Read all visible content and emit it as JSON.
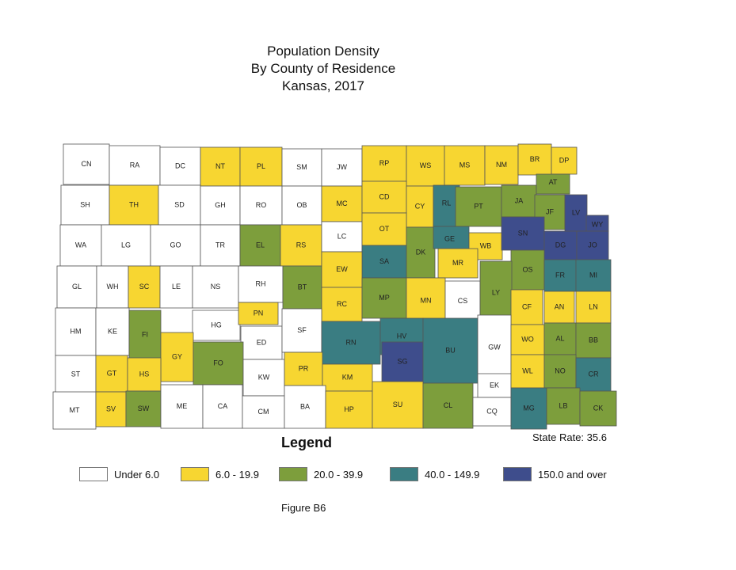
{
  "title": {
    "line1": "Population Density",
    "line2": "By County of Residence",
    "line3": "Kansas, 2017"
  },
  "state_rate": "State Rate: 35.6",
  "legend": {
    "title": "Legend",
    "items": [
      {
        "label": "Under 6.0",
        "color": "#ffffff"
      },
      {
        "label": "6.0 - 19.9",
        "color": "#f7d631"
      },
      {
        "label": "20.0 - 39.9",
        "color": "#7d9e3c"
      },
      {
        "label": "40.0 - 149.9",
        "color": "#3a7d82"
      },
      {
        "label": "150.0 and over",
        "color": "#3e4d8c"
      }
    ]
  },
  "figure_caption": "Figure B6",
  "counties": [
    {
      "abbr": "CN",
      "cls": 0
    },
    {
      "abbr": "RA",
      "cls": 0
    },
    {
      "abbr": "DC",
      "cls": 0
    },
    {
      "abbr": "NT",
      "cls": 1
    },
    {
      "abbr": "PL",
      "cls": 1
    },
    {
      "abbr": "SM",
      "cls": 0
    },
    {
      "abbr": "JW",
      "cls": 0
    },
    {
      "abbr": "RP",
      "cls": 1
    },
    {
      "abbr": "WS",
      "cls": 1
    },
    {
      "abbr": "MS",
      "cls": 1
    },
    {
      "abbr": "NM",
      "cls": 1
    },
    {
      "abbr": "BR",
      "cls": 1
    },
    {
      "abbr": "DP",
      "cls": 1
    },
    {
      "abbr": "SH",
      "cls": 0
    },
    {
      "abbr": "TH",
      "cls": 1
    },
    {
      "abbr": "SD",
      "cls": 0
    },
    {
      "abbr": "GH",
      "cls": 0
    },
    {
      "abbr": "RO",
      "cls": 0
    },
    {
      "abbr": "OB",
      "cls": 0
    },
    {
      "abbr": "MC",
      "cls": 1
    },
    {
      "abbr": "CD",
      "cls": 1
    },
    {
      "abbr": "CY",
      "cls": 1
    },
    {
      "abbr": "RL",
      "cls": 3
    },
    {
      "abbr": "PT",
      "cls": 2
    },
    {
      "abbr": "JA",
      "cls": 2
    },
    {
      "abbr": "AT",
      "cls": 2
    },
    {
      "abbr": "JF",
      "cls": 2
    },
    {
      "abbr": "LV",
      "cls": 4
    },
    {
      "abbr": "WY",
      "cls": 4
    },
    {
      "abbr": "WA",
      "cls": 0
    },
    {
      "abbr": "LG",
      "cls": 0
    },
    {
      "abbr": "GO",
      "cls": 0
    },
    {
      "abbr": "TR",
      "cls": 0
    },
    {
      "abbr": "EL",
      "cls": 2
    },
    {
      "abbr": "RS",
      "cls": 1
    },
    {
      "abbr": "LC",
      "cls": 0
    },
    {
      "abbr": "OT",
      "cls": 1
    },
    {
      "abbr": "SA",
      "cls": 3
    },
    {
      "abbr": "DK",
      "cls": 2
    },
    {
      "abbr": "GE",
      "cls": 3
    },
    {
      "abbr": "WB",
      "cls": 1
    },
    {
      "abbr": "SN",
      "cls": 4
    },
    {
      "abbr": "DG",
      "cls": 4
    },
    {
      "abbr": "JO",
      "cls": 4
    },
    {
      "abbr": "MR",
      "cls": 1
    },
    {
      "abbr": "OS",
      "cls": 2
    },
    {
      "abbr": "FR",
      "cls": 3
    },
    {
      "abbr": "MI",
      "cls": 3
    },
    {
      "abbr": "GL",
      "cls": 0
    },
    {
      "abbr": "WH",
      "cls": 0
    },
    {
      "abbr": "SC",
      "cls": 1
    },
    {
      "abbr": "LE",
      "cls": 0
    },
    {
      "abbr": "NS",
      "cls": 0
    },
    {
      "abbr": "RH",
      "cls": 0
    },
    {
      "abbr": "BT",
      "cls": 2
    },
    {
      "abbr": "EW",
      "cls": 1
    },
    {
      "abbr": "RC",
      "cls": 1
    },
    {
      "abbr": "MP",
      "cls": 2
    },
    {
      "abbr": "MN",
      "cls": 1
    },
    {
      "abbr": "CS",
      "cls": 0
    },
    {
      "abbr": "LY",
      "cls": 2
    },
    {
      "abbr": "CF",
      "cls": 1
    },
    {
      "abbr": "AN",
      "cls": 1
    },
    {
      "abbr": "LN",
      "cls": 1
    },
    {
      "abbr": "HM",
      "cls": 0
    },
    {
      "abbr": "KE",
      "cls": 0
    },
    {
      "abbr": "FI",
      "cls": 2
    },
    {
      "abbr": "HG",
      "cls": 0
    },
    {
      "abbr": "PN",
      "cls": 1
    },
    {
      "abbr": "ED",
      "cls": 0
    },
    {
      "abbr": "SF",
      "cls": 0
    },
    {
      "abbr": "RN",
      "cls": 3
    },
    {
      "abbr": "HV",
      "cls": 3
    },
    {
      "abbr": "GY",
      "cls": 1
    },
    {
      "abbr": "FO",
      "cls": 2
    },
    {
      "abbr": "SG",
      "cls": 4
    },
    {
      "abbr": "BU",
      "cls": 3
    },
    {
      "abbr": "GW",
      "cls": 0
    },
    {
      "abbr": "WO",
      "cls": 1
    },
    {
      "abbr": "AL",
      "cls": 2
    },
    {
      "abbr": "BB",
      "cls": 2
    },
    {
      "abbr": "ST",
      "cls": 0
    },
    {
      "abbr": "GT",
      "cls": 1
    },
    {
      "abbr": "HS",
      "cls": 1
    },
    {
      "abbr": "KW",
      "cls": 0
    },
    {
      "abbr": "PR",
      "cls": 1
    },
    {
      "abbr": "KM",
      "cls": 1
    },
    {
      "abbr": "EK",
      "cls": 0
    },
    {
      "abbr": "WL",
      "cls": 1
    },
    {
      "abbr": "NO",
      "cls": 2
    },
    {
      "abbr": "CR",
      "cls": 3
    },
    {
      "abbr": "MT",
      "cls": 0
    },
    {
      "abbr": "SV",
      "cls": 1
    },
    {
      "abbr": "SW",
      "cls": 2
    },
    {
      "abbr": "ME",
      "cls": 0
    },
    {
      "abbr": "CA",
      "cls": 0
    },
    {
      "abbr": "CM",
      "cls": 0
    },
    {
      "abbr": "BA",
      "cls": 0
    },
    {
      "abbr": "HP",
      "cls": 1
    },
    {
      "abbr": "SU",
      "cls": 1
    },
    {
      "abbr": "CL",
      "cls": 2
    },
    {
      "abbr": "CQ",
      "cls": 0
    },
    {
      "abbr": "MG",
      "cls": 3
    },
    {
      "abbr": "LB",
      "cls": 2
    },
    {
      "abbr": "CK",
      "cls": 2
    }
  ]
}
